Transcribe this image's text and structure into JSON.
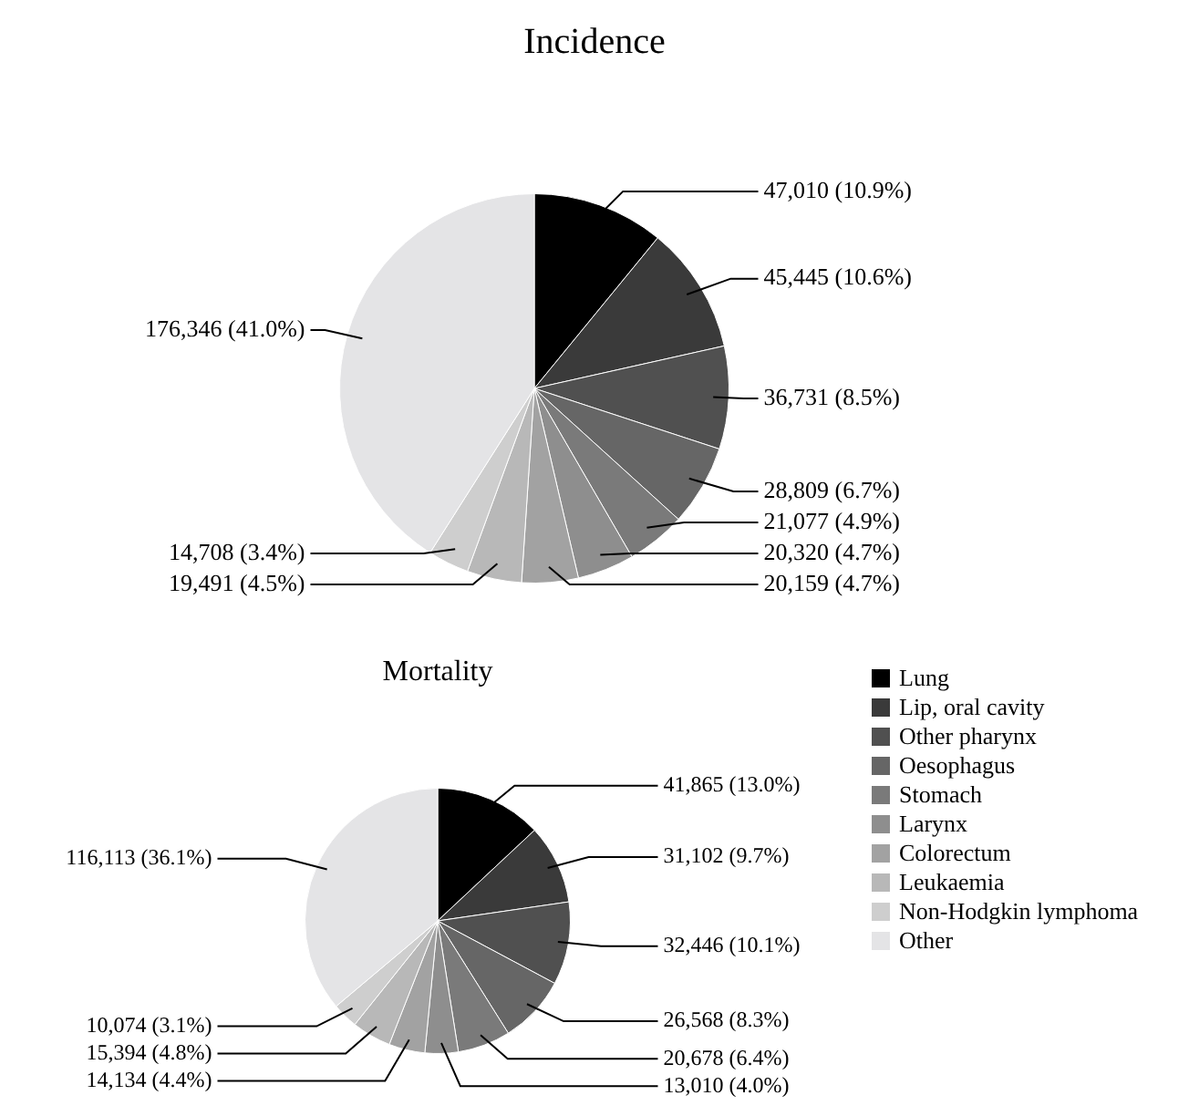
{
  "chart_data": [
    {
      "type": "pie",
      "title": "Incidence",
      "categories": [
        null,
        null,
        null,
        null,
        null,
        null,
        null,
        null,
        null,
        null
      ],
      "values": [
        47010,
        45445,
        36731,
        28809,
        21077,
        20320,
        20159,
        19491,
        14708,
        176346
      ],
      "value_labels": [
        "47,010 (10.9%)",
        "45,445 (10.6%)",
        "36,731 (8.5%)",
        "28,809 (6.7%)",
        "21,077 (4.9%)",
        "20,320 (4.7%)",
        "20,159 (4.7%)",
        "19,491 (4.5%)",
        "14,708 (3.4%)",
        "176,346 (41.0%)"
      ],
      "colors": [
        "#000000",
        "#3a3a3a",
        "#505050",
        "#666666",
        "#7a7a7a",
        "#8e8e8e",
        "#a2a2a2",
        "#b8b8b8",
        "#cecece",
        "#e4e4e6"
      ],
      "legend": false
    },
    {
      "type": "pie",
      "title": "Mortality",
      "categories": [
        "Lung",
        "Lip, oral cavity",
        "Other pharynx",
        "Oesophagus",
        "Stomach",
        "Larynx",
        "Colorectum",
        "Leukaemia",
        "Non-Hodgkin lymphoma",
        "Other"
      ],
      "values": [
        41865,
        31102,
        32446,
        26568,
        20678,
        13010,
        14134,
        15394,
        10074,
        116113
      ],
      "value_labels": [
        "41,865 (13.0%)",
        "31,102 (9.7%)",
        "32,446 (10.1%)",
        "26,568 (8.3%)",
        "20,678 (6.4%)",
        "13,010 (4.0%)",
        "14,134 (4.4%)",
        "15,394 (4.8%)",
        "10,074 (3.1%)",
        "116,113 (36.1%)"
      ],
      "colors": [
        "#000000",
        "#3a3a3a",
        "#505050",
        "#666666",
        "#7a7a7a",
        "#8e8e8e",
        "#a2a2a2",
        "#b8b8b8",
        "#cecece",
        "#e4e4e6"
      ],
      "legend": "right"
    }
  ]
}
